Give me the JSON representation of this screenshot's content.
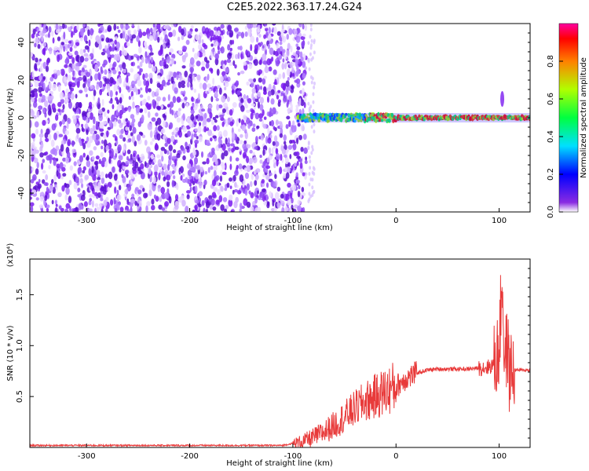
{
  "title": "C2E5.2022.363.17.24.G24",
  "colors": {
    "trace": "#e83a3a",
    "noise": "#7a1cf0",
    "axis": "#000000"
  },
  "chart_data": [
    {
      "type": "heatmap",
      "xlabel": "Height of straight line (km)",
      "ylabel": "Frequency (Hz)",
      "xlim": [
        -355,
        130
      ],
      "ylim": [
        -50,
        50
      ],
      "xticks": [
        -300,
        -200,
        -100,
        0,
        100
      ],
      "yticks": [
        -40,
        -20,
        0,
        20,
        40
      ],
      "colorbar": {
        "label": "Normalized spectral amplitude",
        "range": [
          0.0,
          1.0
        ],
        "ticks": [
          "0.0",
          "0.2",
          "0.4",
          "0.6",
          "0.8"
        ],
        "colormap": "rainbow"
      },
      "features": {
        "broadband_noise_until_km": -95,
        "signal_line_frequency_hz": 0,
        "signal_start_km": -95,
        "peak_at_km": 103
      }
    },
    {
      "type": "line",
      "xlabel": "Height of straight line (km)",
      "ylabel": "SNR (10 * v/v)",
      "y_scale_label": "(x10⁴)",
      "xlim": [
        -355,
        130
      ],
      "ylim": [
        0,
        1.85
      ],
      "xticks": [
        -300,
        -200,
        -100,
        0,
        100
      ],
      "yticks": [
        "0.5",
        "1.0",
        "1.5"
      ],
      "series": [
        {
          "x": [
            -355,
            -300,
            -200,
            -110,
            -100,
            -90,
            -80,
            -70,
            -60,
            -50,
            -40,
            -30,
            -20,
            -10,
            0,
            10,
            20,
            30,
            40,
            50,
            60,
            70,
            80,
            90,
            95,
            100,
            103,
            105,
            108,
            110,
            112,
            115,
            120,
            130
          ],
          "y": [
            0.02,
            0.02,
            0.02,
            0.02,
            0.04,
            0.06,
            0.1,
            0.15,
            0.22,
            0.3,
            0.38,
            0.45,
            0.5,
            0.55,
            0.6,
            0.68,
            0.73,
            0.76,
            0.77,
            0.77,
            0.77,
            0.77,
            0.78,
            0.79,
            0.82,
            0.95,
            1.7,
            0.85,
            1.0,
            0.7,
            0.78,
            0.76,
            0.76,
            0.76
          ]
        }
      ]
    }
  ]
}
